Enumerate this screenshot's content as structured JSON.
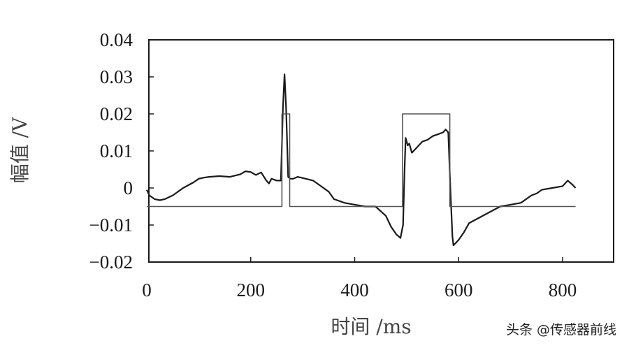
{
  "watermark": "头条 @传感器前线",
  "chart_data": {
    "type": "line",
    "xlabel": "时间 /ms",
    "ylabel": "幅值 /V",
    "xlim": [
      0,
      900
    ],
    "ylim": [
      -0.02,
      0.04
    ],
    "xticks": [
      0,
      200,
      400,
      600,
      800
    ],
    "yticks": [
      -0.02,
      -0.01,
      0,
      0.01,
      0.02,
      0.03,
      0.04
    ],
    "xtick_labels": [
      "0",
      "200",
      "400",
      "600",
      "800"
    ],
    "ytick_labels": [
      "−0.02",
      "−0.01",
      "0",
      "0.01",
      "0.02",
      "0.03",
      "0.04"
    ],
    "grid": false,
    "series": [
      {
        "color": "#1a1a1a",
        "x": [
          0,
          5,
          15,
          25,
          35,
          50,
          70,
          90,
          100,
          110,
          120,
          140,
          160,
          180,
          190,
          200,
          210,
          220,
          230,
          235,
          240,
          250,
          258,
          262,
          265,
          268,
          272,
          276,
          278,
          282,
          290,
          300,
          320,
          340,
          350,
          360,
          380,
          400,
          420,
          440,
          460,
          470,
          480,
          488,
          493,
          496,
          498,
          502,
          505,
          510,
          520,
          530,
          540,
          550,
          560,
          570,
          575,
          580,
          584,
          588,
          590,
          600,
          610,
          620,
          640,
          660,
          680,
          700,
          720,
          740,
          750,
          760,
          780,
          800,
          810,
          818,
          825
        ],
        "y": [
          -0.0005,
          -0.002,
          -0.003,
          -0.0033,
          -0.003,
          -0.002,
          0,
          0.0015,
          0.0025,
          0.0028,
          0.003,
          0.0032,
          0.003,
          0.0037,
          0.0045,
          0.0043,
          0.0035,
          0.0042,
          0.002,
          0.0012,
          0.0025,
          0.002,
          0.002,
          0.022,
          0.0307,
          0.022,
          0.003,
          0.0025,
          0.0025,
          0.0025,
          0.003,
          0.0027,
          0.002,
          0,
          -0.001,
          -0.003,
          -0.004,
          -0.0045,
          -0.005,
          -0.005,
          -0.0075,
          -0.0105,
          -0.0125,
          -0.0135,
          -0.01,
          0.005,
          0.0135,
          0.0115,
          0.012,
          0.0095,
          0.011,
          0.0125,
          0.013,
          0.014,
          0.0145,
          0.015,
          0.0158,
          0.015,
          0.0,
          -0.013,
          -0.0155,
          -0.014,
          -0.012,
          -0.0095,
          -0.008,
          -0.0065,
          -0.005,
          -0.0045,
          -0.004,
          -0.002,
          -0.0015,
          -0.0005,
          0.0,
          0.0005,
          0.002,
          0.001,
          0.0
        ]
      },
      {
        "color": "#555555",
        "x": [
          0,
          260,
          260,
          275,
          275,
          492,
          492,
          583,
          583,
          825
        ],
        "y": [
          -0.005,
          -0.005,
          0.02,
          0.02,
          -0.005,
          -0.005,
          0.02,
          0.02,
          -0.005,
          -0.005
        ]
      }
    ]
  }
}
